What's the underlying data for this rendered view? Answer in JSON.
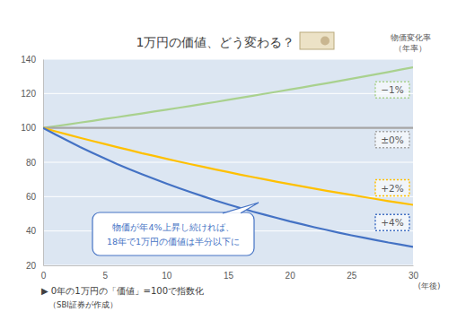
{
  "chart_data": {
    "type": "line",
    "title": "1万円の価値、どう変わる？",
    "legend_title": [
      "物価変化率",
      "（年率）"
    ],
    "x_label": "(年後)",
    "annotations": [
      "物価が年4%上昇し続ければ、",
      "18年で1万円の価値は半分以下に"
    ],
    "footnotes": [
      "▶ 0年の1万円の「価値」=100で指数化",
      "（SBI証券が作成）"
    ],
    "x": [
      0,
      1,
      2,
      3,
      4,
      5,
      6,
      7,
      8,
      9,
      10,
      11,
      12,
      13,
      14,
      15,
      16,
      17,
      18,
      19,
      20,
      21,
      22,
      23,
      24,
      25,
      26,
      27,
      28,
      29,
      30
    ],
    "series": [
      {
        "name": "−1%",
        "color": "#a9d18e",
        "values": [
          100,
          101.0,
          102.0,
          103.1,
          104.1,
          105.2,
          106.2,
          107.3,
          108.4,
          109.5,
          110.6,
          111.7,
          112.8,
          114.0,
          115.1,
          116.3,
          117.5,
          118.7,
          119.9,
          121.1,
          122.3,
          123.5,
          124.8,
          126.0,
          127.3,
          128.6,
          129.9,
          131.2,
          132.5,
          133.9,
          135.2
        ]
      },
      {
        "name": "±0%",
        "color": "#a5a5a5",
        "values": [
          100,
          100,
          100,
          100,
          100,
          100,
          100,
          100,
          100,
          100,
          100,
          100,
          100,
          100,
          100,
          100,
          100,
          100,
          100,
          100,
          100,
          100,
          100,
          100,
          100,
          100,
          100,
          100,
          100,
          100,
          100
        ]
      },
      {
        "name": "+2%",
        "color": "#ffc000",
        "values": [
          100,
          98.0,
          96.1,
          94.2,
          92.4,
          90.6,
          88.8,
          87.1,
          85.3,
          83.7,
          82.0,
          80.4,
          78.8,
          77.3,
          75.8,
          74.3,
          72.8,
          71.4,
          70.0,
          68.6,
          67.3,
          66.0,
          64.7,
          63.4,
          62.2,
          61.0,
          59.8,
          58.6,
          57.4,
          56.3,
          55.2
        ]
      },
      {
        "name": "+4%",
        "color": "#4472c4",
        "values": [
          100,
          96.2,
          92.5,
          88.9,
          85.5,
          82.2,
          79.0,
          76.0,
          73.1,
          70.3,
          67.6,
          65.0,
          62.5,
          60.1,
          57.7,
          55.5,
          53.4,
          51.3,
          49.4,
          47.5,
          45.6,
          43.9,
          42.2,
          40.6,
          39.0,
          37.5,
          36.1,
          34.7,
          33.3,
          32.1,
          30.8
        ]
      }
    ],
    "xlim": [
      0,
      30
    ],
    "xticks": [
      0,
      5,
      10,
      15,
      20,
      25,
      30
    ],
    "ylim": [
      20,
      140
    ],
    "yticks": [
      20,
      40,
      60,
      80,
      100,
      120,
      140
    ],
    "grid": true,
    "legend": "right"
  }
}
